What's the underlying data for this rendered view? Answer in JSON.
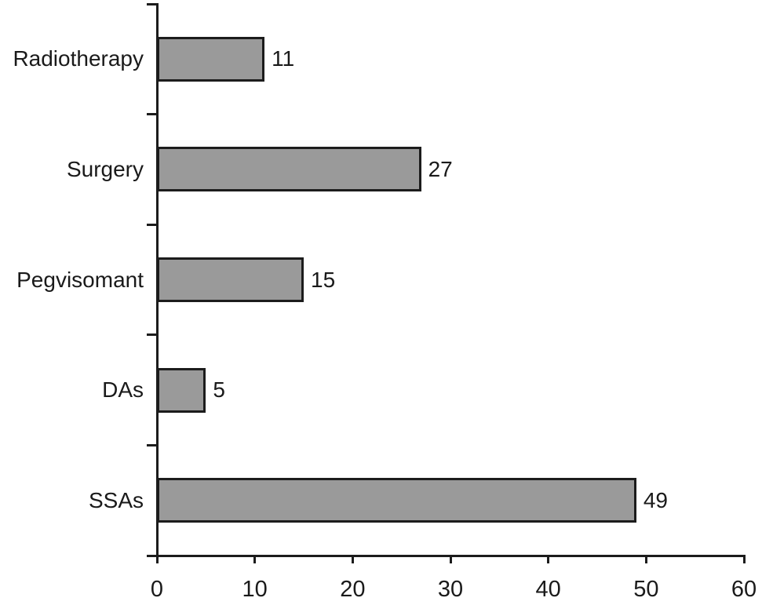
{
  "chart_data": {
    "type": "bar",
    "orientation": "horizontal",
    "title": "",
    "xlabel": "",
    "ylabel": "",
    "categories": [
      "Radiotherapy",
      "Surgery",
      "Pegvisomant",
      "DAs",
      "SSAs"
    ],
    "values": [
      11,
      27,
      15,
      5,
      49
    ],
    "value_labels": [
      "11",
      "27",
      "15",
      "5",
      "49"
    ],
    "xlim": [
      0,
      60
    ],
    "x_ticks": [
      0,
      10,
      20,
      30,
      40,
      50,
      60
    ],
    "x_tick_labels": [
      "0",
      "10",
      "20",
      "30",
      "40",
      "50",
      "60"
    ],
    "grid": false,
    "legend": "none",
    "colors": {
      "bar_fill": "#9a9a9a",
      "bar_border": "#1c1c1c",
      "axis": "#1c1c1c",
      "text": "#1a1a1a",
      "background": "#ffffff"
    }
  }
}
